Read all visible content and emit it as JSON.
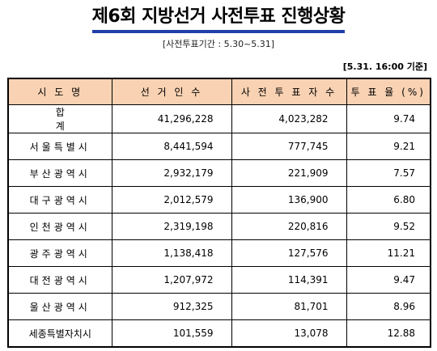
{
  "title": "제6회 지방선거 사전투표 진행상황",
  "period": "[사전투표기간 : 5.30~5.31]",
  "timestamp": "[5.31. 16:00 기준]",
  "table": {
    "headers": [
      "시 도 명",
      "선 거 인 수",
      "사 전 투 표 자 수",
      "투 표 율 (%)"
    ],
    "rows": [
      {
        "region": "합 계",
        "electors": "41,296,228",
        "voters": "4,023,282",
        "rate": "9.74"
      },
      {
        "region": "서울특별시",
        "electors": "8,441,594",
        "voters": "777,745",
        "rate": "9.21"
      },
      {
        "region": "부산광역시",
        "electors": "2,932,179",
        "voters": "221,909",
        "rate": "7.57"
      },
      {
        "region": "대구광역시",
        "electors": "2,012,579",
        "voters": "136,900",
        "rate": "6.80"
      },
      {
        "region": "인천광역시",
        "electors": "2,319,198",
        "voters": "220,816",
        "rate": "9.52"
      },
      {
        "region": "광주광역시",
        "electors": "1,138,418",
        "voters": "127,576",
        "rate": "11.21"
      },
      {
        "region": "대전광역시",
        "electors": "1,207,972",
        "voters": "114,391",
        "rate": "9.47"
      },
      {
        "region": "울산광역시",
        "electors": "912,325",
        "voters": "81,701",
        "rate": "8.96"
      },
      {
        "region": "세종특별자치시",
        "electors": "101,559",
        "voters": "13,078",
        "rate": "12.88"
      }
    ]
  },
  "colors": {
    "header_bg": "#f9d2b3",
    "title_underline": "#1f3fa8"
  }
}
